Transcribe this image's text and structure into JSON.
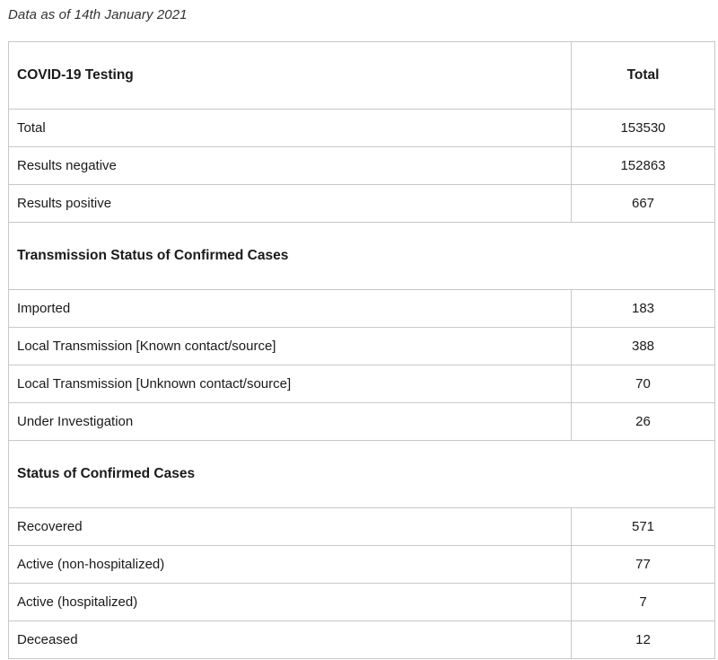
{
  "caption": "Data as of 14th January 2021",
  "table": {
    "header": {
      "label": "COVID-19 Testing",
      "value": "Total"
    },
    "testing_rows": [
      {
        "label": "Total",
        "value": "153530"
      },
      {
        "label": "Results negative",
        "value": "152863"
      },
      {
        "label": "Results positive",
        "value": "667"
      }
    ],
    "transmission_header": "Transmission Status of Confirmed Cases",
    "transmission_rows": [
      {
        "label": "Imported",
        "value": "183"
      },
      {
        "label": "Local Transmission [Known contact/source]",
        "value": "388"
      },
      {
        "label": "Local Transmission [Unknown contact/source]",
        "value": "70"
      },
      {
        "label": "Under Investigation",
        "value": "26"
      }
    ],
    "status_header": "Status of Confirmed Cases",
    "status_rows": [
      {
        "label": "Recovered",
        "value": "571"
      },
      {
        "label": "Active (non-hospitalized)",
        "value": "77"
      },
      {
        "label": "Active (hospitalized)",
        "value": "7"
      },
      {
        "label": "Deceased",
        "value": "12"
      }
    ]
  }
}
